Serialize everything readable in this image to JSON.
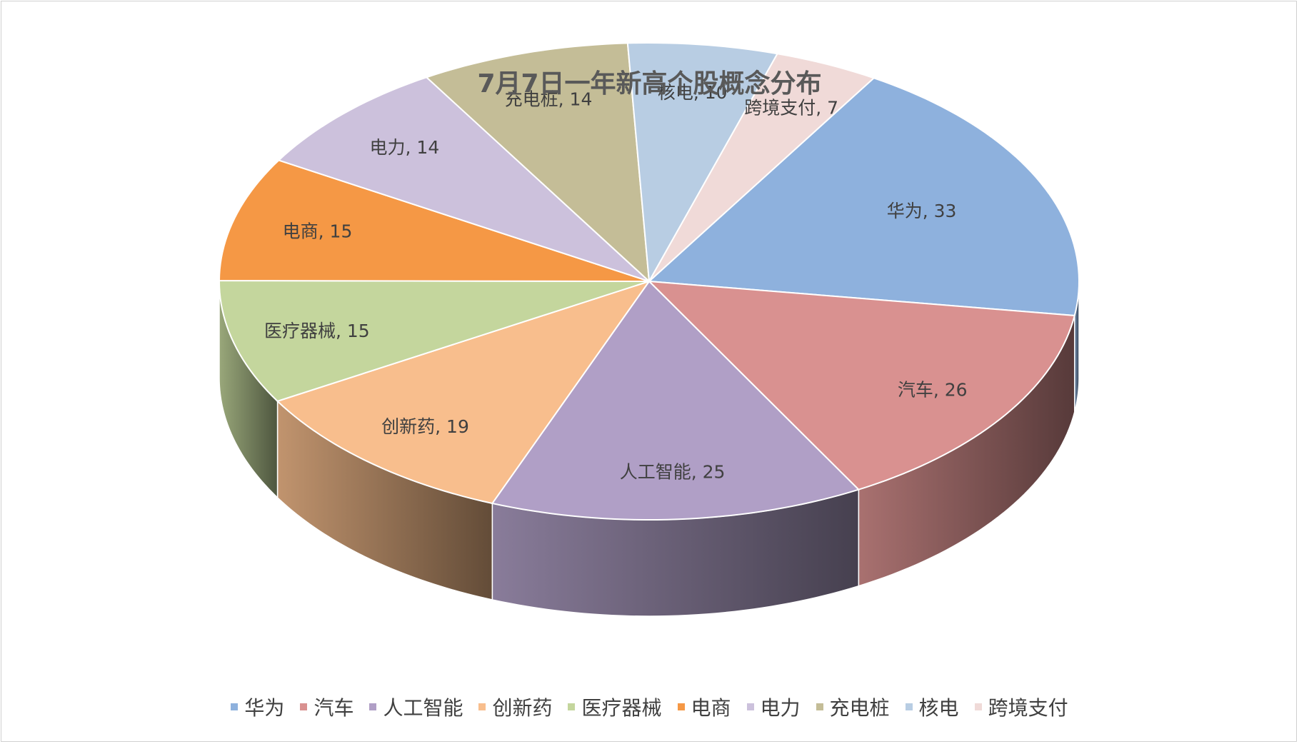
{
  "chart_data": {
    "type": "pie",
    "title": "7月7日一年新高个股概念分布",
    "categories": [
      "华为",
      "汽车",
      "人工智能",
      "创新药",
      "医疗器械",
      "电商",
      "电力",
      "充电桩",
      "核电",
      "跨境支付"
    ],
    "values": [
      33,
      26,
      25,
      19,
      15,
      15,
      14,
      14,
      10,
      7
    ],
    "data_labels": [
      "华为, 33",
      "汽车, 26",
      "人工智能, 25",
      "创新药, 19",
      "医疗器械, 15",
      "电商, 15",
      "电力, 14",
      "充电桩, 14",
      "核电, 10",
      "跨境支付, 7"
    ],
    "colors": [
      "#8EB1DD",
      "#D99190",
      "#B09FC6",
      "#F8BE8D",
      "#C4D69D",
      "#F59845",
      "#CCC1DC",
      "#C4BD97",
      "#B8CDE3",
      "#F0DAD8"
    ],
    "legend_position": "bottom",
    "style": "3d-pie"
  }
}
